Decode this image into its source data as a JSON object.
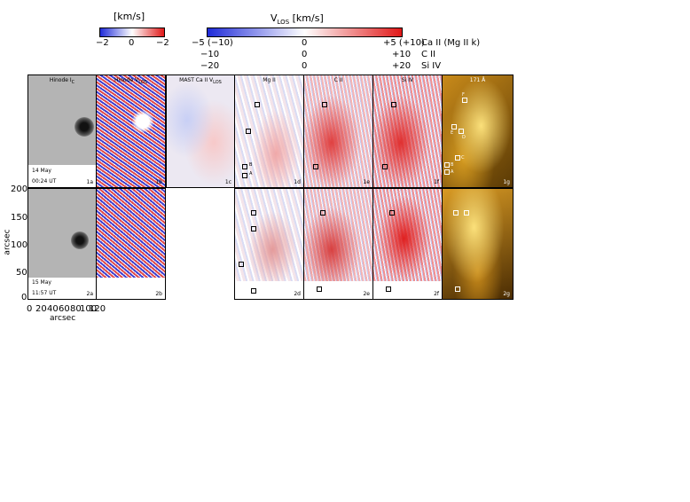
{
  "colorbar_left": {
    "title": "[km/s]",
    "ticks": [
      "−2",
      "0",
      "−2"
    ]
  },
  "colorbar_right": {
    "title": "V",
    "title_sub": "LOS",
    "title_unit": " [km/s]",
    "rows": [
      {
        "left": "−5 (−10)",
        "mid": "0",
        "right": "+5 (+10)",
        "line": "Ca II (Mg II k)"
      },
      {
        "left": "−10",
        "mid": "0",
        "right": "+10",
        "line": "C II"
      },
      {
        "left": "−20",
        "mid": "0",
        "right": "+20",
        "line": "Si IV"
      }
    ]
  },
  "colors": {
    "neg": "#1f2bd8",
    "pos": "#e01818",
    "gold_dark": "#3a2400",
    "gold_light": "#f5c23a"
  },
  "panels_row1": [
    {
      "title": "Hinode I",
      "title_sub": "C",
      "label": "1a",
      "date": "14 May",
      "time": "00:24 UT"
    },
    {
      "title": "Hinode V",
      "title_sub": "LOS",
      "label": "1b"
    },
    {
      "title": "MAST Ca II V",
      "title_sub": "LOS",
      "label": "1c"
    },
    {
      "title": "Mg II",
      "label": "1d"
    },
    {
      "title": "C II",
      "label": "1e"
    },
    {
      "title": "Si IV",
      "label": "1f"
    },
    {
      "title": "171 Å",
      "label": "1g"
    }
  ],
  "panels_row2": [
    {
      "label": "2a",
      "date": "15 May",
      "time": "11:57 UT"
    },
    {
      "label": "2b"
    },
    {
      "label": "2d"
    },
    {
      "label": "2e"
    },
    {
      "label": "2f"
    },
    {
      "label": "2g"
    }
  ],
  "box_labels": [
    "A",
    "B",
    "C",
    "D",
    "E",
    "F"
  ],
  "y_axis": {
    "label": "arcsec",
    "ticks": [
      "200",
      "150",
      "100",
      "50",
      "0"
    ]
  },
  "x_axis": {
    "label": "arcsec",
    "ticks": [
      "0",
      "20",
      "40",
      "60",
      "80",
      "100",
      "120"
    ]
  }
}
